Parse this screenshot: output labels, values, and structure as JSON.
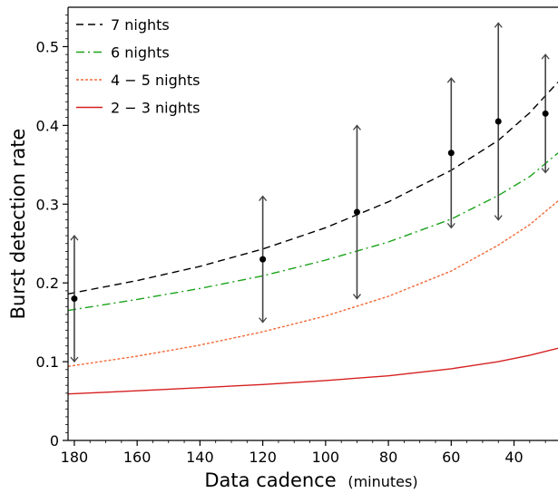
{
  "chart_data": {
    "type": "scatter",
    "xlabel": "Data cadence",
    "xlabel_unit": "(minutes)",
    "ylabel": "Burst detection rate",
    "xlim": [
      182,
      26
    ],
    "ylim": [
      0,
      0.55
    ],
    "x_ticks": [
      180,
      160,
      140,
      120,
      100,
      80,
      60,
      40
    ],
    "y_ticks": [
      0,
      0.1,
      0.2,
      0.3,
      0.4,
      0.5
    ],
    "y_tick_labels": [
      "0",
      "0.1",
      "0.2",
      "0.3",
      "0.4",
      "0.5"
    ],
    "legend_position": "top-left",
    "grid": false,
    "observations": {
      "x": [
        180,
        120,
        90,
        60,
        45,
        30
      ],
      "y": [
        0.18,
        0.23,
        0.29,
        0.365,
        0.405,
        0.415
      ],
      "upper": [
        0.26,
        0.31,
        0.4,
        0.46,
        0.53,
        0.49
      ],
      "lower": [
        0.1,
        0.15,
        0.18,
        0.27,
        0.28,
        0.34
      ],
      "color": "#000000"
    },
    "series": [
      {
        "name": "7 nights",
        "color": "#000000",
        "dash": "dashed",
        "x": [
          182,
          160,
          140,
          120,
          100,
          80,
          60,
          45,
          35,
          26
        ],
        "y": [
          0.186,
          0.203,
          0.221,
          0.243,
          0.27,
          0.303,
          0.343,
          0.381,
          0.416,
          0.455
        ]
      },
      {
        "name": "6 nights",
        "color": "#1aa31a",
        "dash": "dashdot",
        "x": [
          182,
          160,
          140,
          120,
          100,
          80,
          60,
          45,
          35,
          26
        ],
        "y": [
          0.165,
          0.179,
          0.193,
          0.209,
          0.229,
          0.252,
          0.281,
          0.311,
          0.335,
          0.365
        ]
      },
      {
        "name": "4 − 5 nights",
        "color": "#f26b3a",
        "dash": "dotted",
        "x": [
          182,
          160,
          140,
          120,
          100,
          80,
          60,
          45,
          35,
          26
        ],
        "y": [
          0.094,
          0.107,
          0.121,
          0.138,
          0.158,
          0.183,
          0.215,
          0.248,
          0.274,
          0.304
        ]
      },
      {
        "name": "2 − 3 nights",
        "color": "#d62020",
        "dash": "solid",
        "x": [
          182,
          160,
          140,
          120,
          100,
          80,
          60,
          45,
          35,
          26
        ],
        "y": [
          0.059,
          0.063,
          0.067,
          0.071,
          0.076,
          0.082,
          0.091,
          0.1,
          0.108,
          0.117
        ]
      }
    ]
  }
}
